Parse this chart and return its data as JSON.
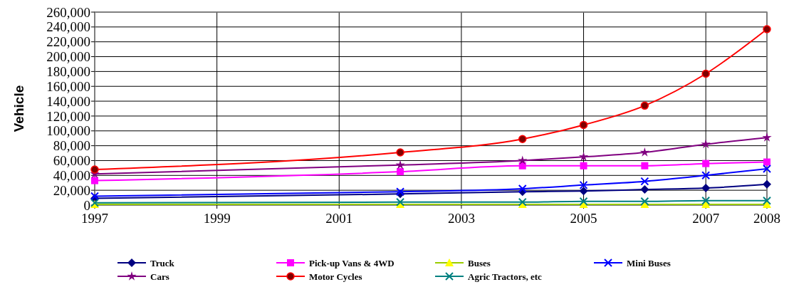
{
  "chart_data": {
    "type": "line",
    "ylabel": "Vehicle",
    "x": [
      1997,
      2002,
      2004,
      2005,
      2006,
      2007,
      2008
    ],
    "xlim": [
      1997,
      2008
    ],
    "xticks": [
      1997,
      1999,
      2001,
      2003,
      2005,
      2007,
      2008
    ],
    "ylim": [
      0,
      260000
    ],
    "yticks": [
      {
        "value": 0,
        "label": "0"
      },
      {
        "value": 20000,
        "label": "20,000"
      },
      {
        "value": 40000,
        "label": "40,000"
      },
      {
        "value": 60000,
        "label": "60,000"
      },
      {
        "value": 80000,
        "label": "80,000"
      },
      {
        "value": 100000,
        "label": "100,000"
      },
      {
        "value": 120000,
        "label": "120,000"
      },
      {
        "value": 140000,
        "label": "140,000"
      },
      {
        "value": 160000,
        "label": "160,000"
      },
      {
        "value": 180000,
        "label": "180,000"
      },
      {
        "value": 200000,
        "label": "200,000"
      },
      {
        "value": 220000,
        "label": "220,000"
      },
      {
        "value": 240000,
        "label": "240,000"
      },
      {
        "value": 260000,
        "label": "260,000"
      }
    ],
    "grid": true,
    "legend": "bottom",
    "series": [
      {
        "name": "Truck",
        "color": "#000080",
        "marker": "diamond",
        "values": [
          9000,
          15000,
          18000,
          19000,
          21000,
          23000,
          28000
        ]
      },
      {
        "name": "Pick-up Vans & 4WD",
        "color": "#ff00ff",
        "marker": "square",
        "values": [
          33000,
          45000,
          53000,
          53000,
          53000,
          56000,
          58000
        ]
      },
      {
        "name": "Buses",
        "color": "#99cc00",
        "marker": "triangle",
        "values": [
          1000,
          1000,
          1000,
          1000,
          1000,
          1000,
          1000
        ]
      },
      {
        "name": "Mini Buses",
        "color": "#0000ff",
        "marker": "cross",
        "values": [
          12000,
          18000,
          22000,
          27000,
          32000,
          40000,
          49000
        ]
      },
      {
        "name": "Cars",
        "color": "#800080",
        "marker": "star",
        "values": [
          42000,
          54000,
          60000,
          65000,
          71000,
          82000,
          91000
        ]
      },
      {
        "name": "Motor Cycles",
        "color": "#ff0000",
        "marker": "circle",
        "values": [
          48000,
          71000,
          89000,
          108000,
          134000,
          177000,
          237000
        ]
      },
      {
        "name": "Agric Tractors, etc",
        "color": "#008080",
        "marker": "cross",
        "values": [
          3000,
          4000,
          4000,
          5000,
          5000,
          6000,
          6000
        ]
      }
    ]
  }
}
